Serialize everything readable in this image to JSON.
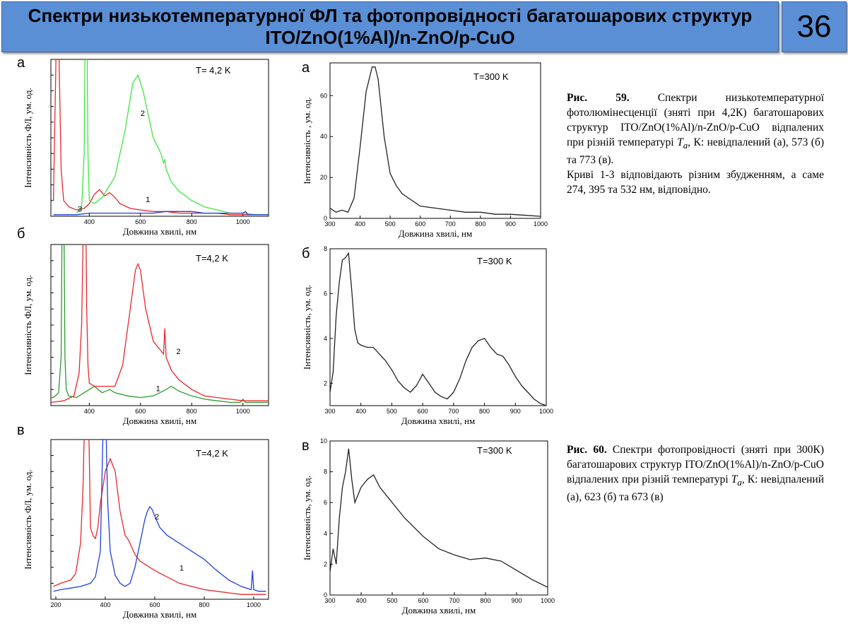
{
  "header": {
    "title": "Спектри низькотемпературної ФЛ та фотопровідності багатошарових структур ITO/ZnO(1%Al)/n-ZnO/p-CuO",
    "slide_number": "36"
  },
  "captions": {
    "fig59_label": "Рис. 59.",
    "fig59_text": "Спектри низькотемпературної фотолюмінесценції (зняті при 4,2К) багатошарових структур ITO/ZnO(1%Al)/n-ZnO/p-CuO відпалених при різній температурі",
    "fig59_symbol": "T",
    "fig59_subscript": "a",
    "fig59_text2": ", К: невідпалений (а), 573 (б) та 773 (в).",
    "fig59_text3": "Криві 1-3 відповідають різним збудженням, а саме 274, 395 та 532 нм, відповідно.",
    "fig60_label": "Рис. 60.",
    "fig60_text": "Спектри фотопровідності (зняті при 300К) багатошарових структур ITO/ZnO(1%Al)/n-ZnO/p-CuO відпалених при різній температурі",
    "fig60_symbol": "T",
    "fig60_subscript": "a",
    "fig60_text2": ", К: невідпалений (а), 623 (б) та 673 (в)"
  },
  "chart_data": [
    {
      "id": "pl_a",
      "type": "line",
      "panel_letter": "а",
      "temperature": "T= 4,2 K",
      "xlabel": "Довжина хвилі, нм",
      "ylabel": "Інтенсивність ФЛ, ум. од.",
      "xlim": [
        250,
        1100
      ],
      "ylim": [
        0,
        100
      ],
      "xticks": [
        400,
        600,
        800,
        1000
      ],
      "yticks_labeled": false,
      "series": [
        {
          "name": "1",
          "color": "#e8262b",
          "x": [
            260,
            270,
            278,
            282,
            290,
            300,
            320,
            350,
            380,
            400,
            420,
            440,
            460,
            480,
            500,
            520,
            560,
            600,
            650,
            700,
            750,
            800,
            850,
            900,
            950,
            1000,
            1050,
            1100
          ],
          "y": [
            10,
            100,
            140,
            100,
            30,
            10,
            6,
            4,
            5,
            8,
            14,
            17,
            13,
            15,
            12,
            8,
            5,
            4,
            3,
            3,
            2,
            2,
            2,
            2,
            1,
            1,
            1,
            1
          ]
        },
        {
          "name": "2",
          "color": "#3ee63e",
          "x": [
            350,
            370,
            380,
            385,
            390,
            395,
            400,
            420,
            450,
            500,
            540,
            570,
            590,
            610,
            650,
            680,
            690,
            695,
            700,
            720,
            750,
            800,
            850,
            900,
            950,
            1000,
            1050,
            1100
          ],
          "y": [
            2,
            5,
            40,
            140,
            140,
            40,
            10,
            8,
            12,
            25,
            55,
            85,
            90,
            80,
            50,
            40,
            34,
            36,
            30,
            22,
            16,
            10,
            6,
            4,
            2,
            2,
            1,
            1
          ]
        },
        {
          "name": "3",
          "color": "#1f3fd6",
          "x": [
            260,
            300,
            350,
            400,
            450,
            500,
            550,
            600,
            650,
            700,
            750,
            800,
            850,
            900,
            950,
            1000,
            1010,
            1020,
            1050,
            1100
          ],
          "y": [
            1,
            1,
            1,
            2,
            2,
            2,
            2,
            2,
            2,
            3,
            3,
            3,
            2,
            2,
            2,
            2,
            3,
            1,
            1,
            1
          ]
        }
      ]
    },
    {
      "id": "pc_a",
      "type": "line",
      "panel_letter": "а",
      "temperature": "T=300 K",
      "xlabel": "Довжина хвилі, нм",
      "ylabel": "Інтенсивність , ум. од.",
      "xlim": [
        300,
        1000
      ],
      "ylim": [
        0,
        76
      ],
      "xticks": [
        300,
        400,
        500,
        600,
        700,
        800,
        900,
        1000
      ],
      "yticks": [
        0,
        20,
        40,
        60
      ],
      "series": [
        {
          "color": "#222222",
          "x": [
            300,
            320,
            340,
            360,
            380,
            400,
            420,
            440,
            450,
            460,
            480,
            500,
            520,
            540,
            560,
            580,
            600,
            650,
            700,
            750,
            800,
            850,
            900,
            950,
            1000
          ],
          "y": [
            5,
            3,
            4,
            3,
            10,
            35,
            62,
            74,
            74,
            68,
            40,
            22,
            16,
            12,
            10,
            8,
            6,
            5,
            4,
            3,
            3,
            2,
            2,
            1.5,
            1
          ]
        }
      ]
    },
    {
      "id": "pl_b",
      "type": "line",
      "panel_letter": "б",
      "temperature": "T=4,2 K",
      "xlabel": "Довжина хвилі, нм",
      "ylabel": "Інтенсивність ФЛ, ум. од.",
      "xlim": [
        250,
        1100
      ],
      "ylim": [
        0,
        100
      ],
      "xticks": [
        400,
        600,
        800,
        1000
      ],
      "yticks_labeled": false,
      "series": [
        {
          "name": "1",
          "color": "#2a9a2a",
          "x": [
            250,
            260,
            280,
            290,
            295,
            300,
            305,
            310,
            320,
            350,
            400,
            420,
            450,
            480,
            500,
            550,
            600,
            650,
            700,
            720,
            750,
            800,
            850,
            900,
            950,
            990,
            1000,
            1010,
            1050,
            1100
          ],
          "y": [
            5,
            5,
            8,
            30,
            140,
            140,
            30,
            10,
            6,
            5,
            10,
            12,
            8,
            10,
            8,
            6,
            5,
            6,
            10,
            12,
            9,
            6,
            4,
            3,
            2,
            2,
            4,
            2,
            2,
            2
          ]
        },
        {
          "name": "2",
          "color": "#e8262b",
          "x": [
            250,
            300,
            340,
            360,
            370,
            380,
            385,
            390,
            395,
            400,
            420,
            450,
            500,
            530,
            560,
            580,
            590,
            600,
            620,
            650,
            680,
            690,
            695,
            700,
            720,
            750,
            800,
            850,
            900,
            950,
            1000,
            1050,
            1100
          ],
          "y": [
            2,
            3,
            6,
            20,
            50,
            140,
            140,
            60,
            25,
            14,
            12,
            12,
            12,
            25,
            60,
            84,
            88,
            84,
            60,
            40,
            34,
            32,
            48,
            30,
            22,
            16,
            10,
            6,
            5,
            4,
            3,
            3,
            3
          ]
        }
      ]
    },
    {
      "id": "pc_b",
      "type": "line",
      "panel_letter": "б",
      "temperature": "T=300 K",
      "xlabel": "Довжина хвилі, нм",
      "ylabel": "Інтенсивність, ум. од.",
      "xlim": [
        300,
        1000
      ],
      "ylim": [
        1,
        8
      ],
      "xticks": [
        300,
        400,
        500,
        600,
        700,
        800,
        900,
        1000
      ],
      "yticks": [
        2,
        4,
        6,
        8
      ],
      "series": [
        {
          "color": "#222222",
          "x": [
            300,
            310,
            320,
            330,
            340,
            350,
            360,
            370,
            380,
            390,
            400,
            420,
            440,
            460,
            480,
            500,
            520,
            540,
            560,
            580,
            600,
            620,
            640,
            660,
            680,
            700,
            720,
            740,
            760,
            780,
            800,
            820,
            840,
            860,
            880,
            900,
            920,
            940,
            960,
            980,
            1000
          ],
          "y": [
            1.6,
            2.5,
            5,
            6.5,
            7.5,
            7.6,
            7.8,
            6.2,
            4.4,
            3.8,
            3.7,
            3.6,
            3.6,
            3.3,
            3.0,
            2.6,
            2.1,
            1.8,
            1.6,
            1.9,
            2.4,
            2.0,
            1.6,
            1.4,
            1.3,
            1.6,
            2.2,
            3.0,
            3.6,
            3.9,
            4.0,
            3.6,
            3.3,
            3.2,
            2.8,
            2.3,
            1.9,
            1.6,
            1.3,
            1.1,
            1.0
          ]
        }
      ]
    },
    {
      "id": "pl_c",
      "type": "line",
      "panel_letter": "в",
      "temperature": "T=4,2 K",
      "xlabel": "Довжина хвилі, нм",
      "ylabel": "Інтенсивність ФЛ, ум. од.",
      "xlim": [
        180,
        1060
      ],
      "ylim": [
        0,
        100
      ],
      "xticks": [
        200,
        400,
        600,
        800,
        1000
      ],
      "yticks_labeled": false,
      "series": [
        {
          "name": "1",
          "color": "#e8262b",
          "x": [
            190,
            220,
            260,
            280,
            300,
            310,
            320,
            330,
            340,
            350,
            360,
            370,
            380,
            400,
            420,
            440,
            460,
            480,
            490,
            500,
            520,
            540,
            560,
            600,
            650,
            700,
            750,
            800,
            850,
            900,
            950,
            1000,
            1050
          ],
          "y": [
            8,
            10,
            12,
            16,
            35,
            70,
            140,
            140,
            45,
            40,
            38,
            45,
            60,
            80,
            88,
            80,
            55,
            40,
            38,
            35,
            28,
            24,
            22,
            18,
            14,
            10,
            8,
            6,
            5,
            4,
            3,
            3,
            3
          ]
        },
        {
          "name": "2",
          "color": "#1f3fd6",
          "x": [
            190,
            220,
            260,
            300,
            340,
            360,
            380,
            390,
            395,
            400,
            405,
            410,
            420,
            440,
            460,
            480,
            500,
            520,
            540,
            560,
            570,
            580,
            590,
            600,
            620,
            650,
            700,
            750,
            800,
            850,
            900,
            950,
            990,
            995,
            1000,
            1020,
            1050
          ],
          "y": [
            5,
            6,
            7,
            8,
            10,
            14,
            30,
            100,
            140,
            140,
            90,
            60,
            30,
            15,
            10,
            8,
            10,
            20,
            35,
            50,
            55,
            58,
            56,
            52,
            45,
            40,
            35,
            30,
            25,
            18,
            12,
            8,
            6,
            18,
            6,
            5,
            5
          ]
        }
      ]
    },
    {
      "id": "pc_c",
      "type": "line",
      "panel_letter": "в",
      "temperature": "T=300 K",
      "xlabel": "Довжина хвилі, нм",
      "ylabel": "Інтенсивність, ум. од.",
      "xlim": [
        300,
        1000
      ],
      "ylim": [
        0,
        10
      ],
      "xticks": [
        300,
        400,
        500,
        600,
        700,
        800,
        900,
        1000
      ],
      "yticks": [
        0,
        2,
        4,
        6,
        8,
        10
      ],
      "series": [
        {
          "color": "#222222",
          "x": [
            300,
            310,
            320,
            330,
            340,
            350,
            360,
            370,
            380,
            390,
            400,
            420,
            440,
            460,
            480,
            500,
            520,
            540,
            560,
            580,
            600,
            650,
            700,
            750,
            800,
            850,
            900,
            950,
            1000
          ],
          "y": [
            1.5,
            3,
            2,
            5,
            7,
            8,
            9.5,
            7.5,
            6,
            6.5,
            7,
            7.5,
            7.8,
            7,
            6.5,
            6,
            5.5,
            5,
            4.6,
            4.2,
            3.8,
            3,
            2.6,
            2.3,
            2.4,
            2.2,
            1.6,
            1.0,
            0.5
          ]
        }
      ]
    }
  ]
}
